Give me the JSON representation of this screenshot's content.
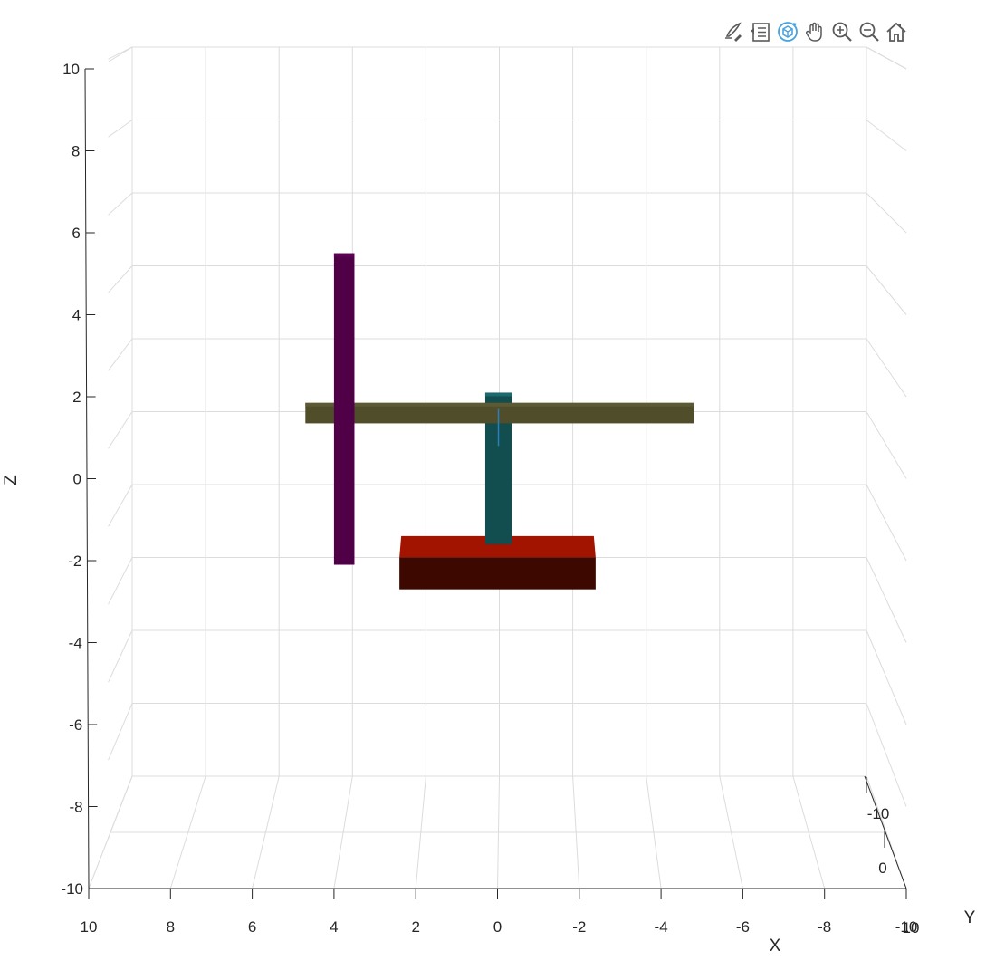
{
  "toolbar": {
    "buttons": [
      {
        "name": "brush-icon"
      },
      {
        "name": "legend-icon"
      },
      {
        "name": "rotate-3d-icon"
      },
      {
        "name": "pan-hand-icon"
      },
      {
        "name": "zoom-in-icon"
      },
      {
        "name": "zoom-out-icon"
      },
      {
        "name": "home-icon"
      }
    ],
    "active_color": "#4aa3df",
    "icon_color": "#5a5a5a"
  },
  "chart_data": {
    "type": "3d-boxes",
    "title": "",
    "xlabel": "X",
    "ylabel": "Y",
    "zlabel": "Z",
    "xlim": [
      -10,
      10
    ],
    "zlim": [
      -10,
      10
    ],
    "x_ticks": [
      {
        "value": 10,
        "label": "10"
      },
      {
        "value": 8,
        "label": "8"
      },
      {
        "value": 6,
        "label": "6"
      },
      {
        "value": 4,
        "label": "4"
      },
      {
        "value": 2,
        "label": "2"
      },
      {
        "value": 0,
        "label": "0"
      },
      {
        "value": -2,
        "label": "-2"
      },
      {
        "value": -4,
        "label": "-4"
      },
      {
        "value": -6,
        "label": "-6"
      },
      {
        "value": -8,
        "label": "-8"
      },
      {
        "value": -10,
        "label": "-10"
      }
    ],
    "z_ticks": [
      {
        "value": 10,
        "label": "10"
      },
      {
        "value": 8,
        "label": "8"
      },
      {
        "value": 6,
        "label": "6"
      },
      {
        "value": 4,
        "label": "4"
      },
      {
        "value": 2,
        "label": "2"
      },
      {
        "value": 0,
        "label": "0"
      },
      {
        "value": -2,
        "label": "-2"
      },
      {
        "value": -4,
        "label": "-4"
      },
      {
        "value": -6,
        "label": "-6"
      },
      {
        "value": -8,
        "label": "-8"
      },
      {
        "value": -10,
        "label": "-10"
      }
    ],
    "y_ticks": [
      {
        "value": -10,
        "label": "-10"
      },
      {
        "value": 0,
        "label": "0"
      },
      {
        "value": 10,
        "label": "10"
      }
    ],
    "grid": true,
    "objects": [
      {
        "name": "base-box",
        "x": [
          -2.4,
          2.4
        ],
        "z": [
          -2.7,
          -1.4
        ],
        "front_color": "#3d0800",
        "top_color": "#a31400"
      },
      {
        "name": "vertical-column",
        "x": [
          -0.35,
          0.3
        ],
        "z": [
          -1.6,
          2.1
        ],
        "front_color": "#124d4f",
        "top_color": "#1b6a70"
      },
      {
        "name": "horizontal-beam",
        "x": [
          -4.8,
          4.7
        ],
        "z": [
          1.35,
          1.85
        ],
        "front_color": "#4f4d2a",
        "top_color": "#5c5a33"
      },
      {
        "name": "purple-bar",
        "x": [
          3.5,
          4.0
        ],
        "z": [
          -2.1,
          5.5
        ],
        "front_color": "#4f0047",
        "top_color": "#5e0055"
      }
    ],
    "thin_line": {
      "x": 0.0,
      "z": [
        0.8,
        1.7
      ],
      "color": "#2c7fb8"
    }
  }
}
